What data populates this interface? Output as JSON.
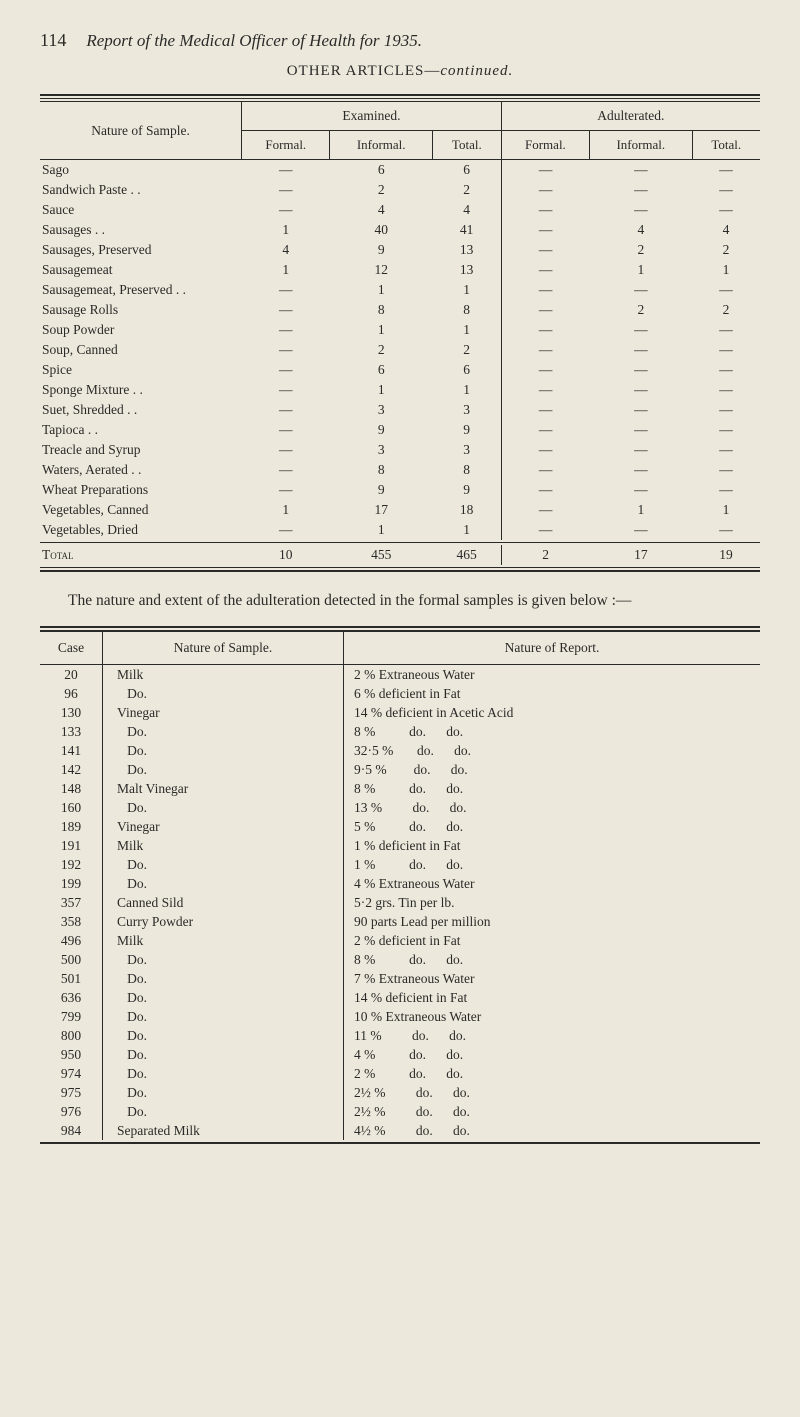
{
  "page_number": "114",
  "page_title": "Report of the Medical Officer of Health for 1935.",
  "subtitle_prefix": "OTHER ARTICLES—",
  "subtitle_italic": "continued.",
  "table1": {
    "header_nature": "Nature of Sample.",
    "header_examined": "Examined.",
    "header_adulterated": "Adulterated.",
    "sub_formal": "Formal.",
    "sub_informal": "In­formal.",
    "sub_total": "Total.",
    "rows": [
      [
        "Sago",
        "—",
        "6",
        "6",
        "—",
        "—",
        "—"
      ],
      [
        "Sandwich Paste . .",
        "—",
        "2",
        "2",
        "—",
        "—",
        "—"
      ],
      [
        "Sauce",
        "—",
        "4",
        "4",
        "—",
        "—",
        "—"
      ],
      [
        "Sausages . .",
        "1",
        "40",
        "41",
        "—",
        "4",
        "4"
      ],
      [
        "Sausages, Preserved",
        "4",
        "9",
        "13",
        "—",
        "2",
        "2"
      ],
      [
        "Sausagemeat",
        "1",
        "12",
        "13",
        "—",
        "1",
        "1"
      ],
      [
        "Sausagemeat, Pre­served . .",
        "—",
        "1",
        "1",
        "—",
        "—",
        "—"
      ],
      [
        "Sausage Rolls",
        "—",
        "8",
        "8",
        "—",
        "2",
        "2"
      ],
      [
        "Soup Powder",
        "—",
        "1",
        "1",
        "—",
        "—",
        "—"
      ],
      [
        "Soup, Canned",
        "—",
        "2",
        "2",
        "—",
        "—",
        "—"
      ],
      [
        "Spice",
        "—",
        "6",
        "6",
        "—",
        "—",
        "—"
      ],
      [
        "Sponge Mixture . .",
        "—",
        "1",
        "1",
        "—",
        "—",
        "—"
      ],
      [
        "Suet, Shredded . .",
        "—",
        "3",
        "3",
        "—",
        "—",
        "—"
      ],
      [
        "Tapioca . .",
        "—",
        "9",
        "9",
        "—",
        "—",
        "—"
      ],
      [
        "Treacle and Syrup",
        "—",
        "3",
        "3",
        "—",
        "—",
        "—"
      ],
      [
        "Waters, Aerated . .",
        "—",
        "8",
        "8",
        "—",
        "—",
        "—"
      ],
      [
        "Wheat Preparations",
        "—",
        "9",
        "9",
        "—",
        "—",
        "—"
      ],
      [
        "Vegetables, Canned",
        "1",
        "17",
        "18",
        "—",
        "1",
        "1"
      ],
      [
        "Vegetables, Dried",
        "—",
        "1",
        "1",
        "—",
        "—",
        "—"
      ]
    ],
    "total_label": "Total",
    "totals": [
      "10",
      "455",
      "465",
      "2",
      "17",
      "19"
    ]
  },
  "body_paragraph": "The nature and extent of the adulteration detected in the formal samples is given below :—",
  "table2": {
    "col_case": "Case",
    "col_sample": "Nature of Sample.",
    "col_report": "Nature of Report.",
    "rows": [
      [
        "20",
        "Milk",
        "2 % Extraneous Water"
      ],
      [
        "96",
        "   Do.",
        "6 % deficient in Fat"
      ],
      [
        "130",
        "Vinegar",
        "14 % deficient in Acetic Acid"
      ],
      [
        "133",
        "   Do.",
        "8 %          do.      do."
      ],
      [
        "141",
        "   Do.",
        "32·5 %       do.      do."
      ],
      [
        "142",
        "   Do.",
        "9·5 %        do.      do."
      ],
      [
        "148",
        "Malt Vinegar",
        "8 %          do.      do."
      ],
      [
        "160",
        "   Do.",
        "13 %         do.      do."
      ],
      [
        "189",
        "Vinegar",
        "5 %          do.      do."
      ],
      [
        "191",
        "Milk",
        "1 % deficient in Fat"
      ],
      [
        "192",
        "   Do.",
        "1 %          do.      do."
      ],
      [
        "199",
        "   Do.",
        "4 % Extraneous Water"
      ],
      [
        "357",
        "Canned Sild",
        "5·2 grs. Tin per lb."
      ],
      [
        "358",
        "Curry Powder",
        "90 parts Lead per million"
      ],
      [
        "496",
        "Milk",
        "2 % deficient in Fat"
      ],
      [
        "500",
        "   Do.",
        "8 %          do.      do."
      ],
      [
        "501",
        "   Do.",
        "7 % Extraneous Water"
      ],
      [
        "636",
        "   Do.",
        "14 % deficient in Fat"
      ],
      [
        "799",
        "   Do.",
        "10 % Extraneous Water"
      ],
      [
        "800",
        "   Do.",
        "11 %         do.      do."
      ],
      [
        "950",
        "   Do.",
        "4 %          do.      do."
      ],
      [
        "974",
        "   Do.",
        "2 %          do.      do."
      ],
      [
        "975",
        "   Do.",
        "2½ %         do.      do."
      ],
      [
        "976",
        "   Do.",
        "2½ %         do.      do."
      ],
      [
        "984",
        "Separated Milk",
        "4½ %         do.      do."
      ]
    ]
  }
}
